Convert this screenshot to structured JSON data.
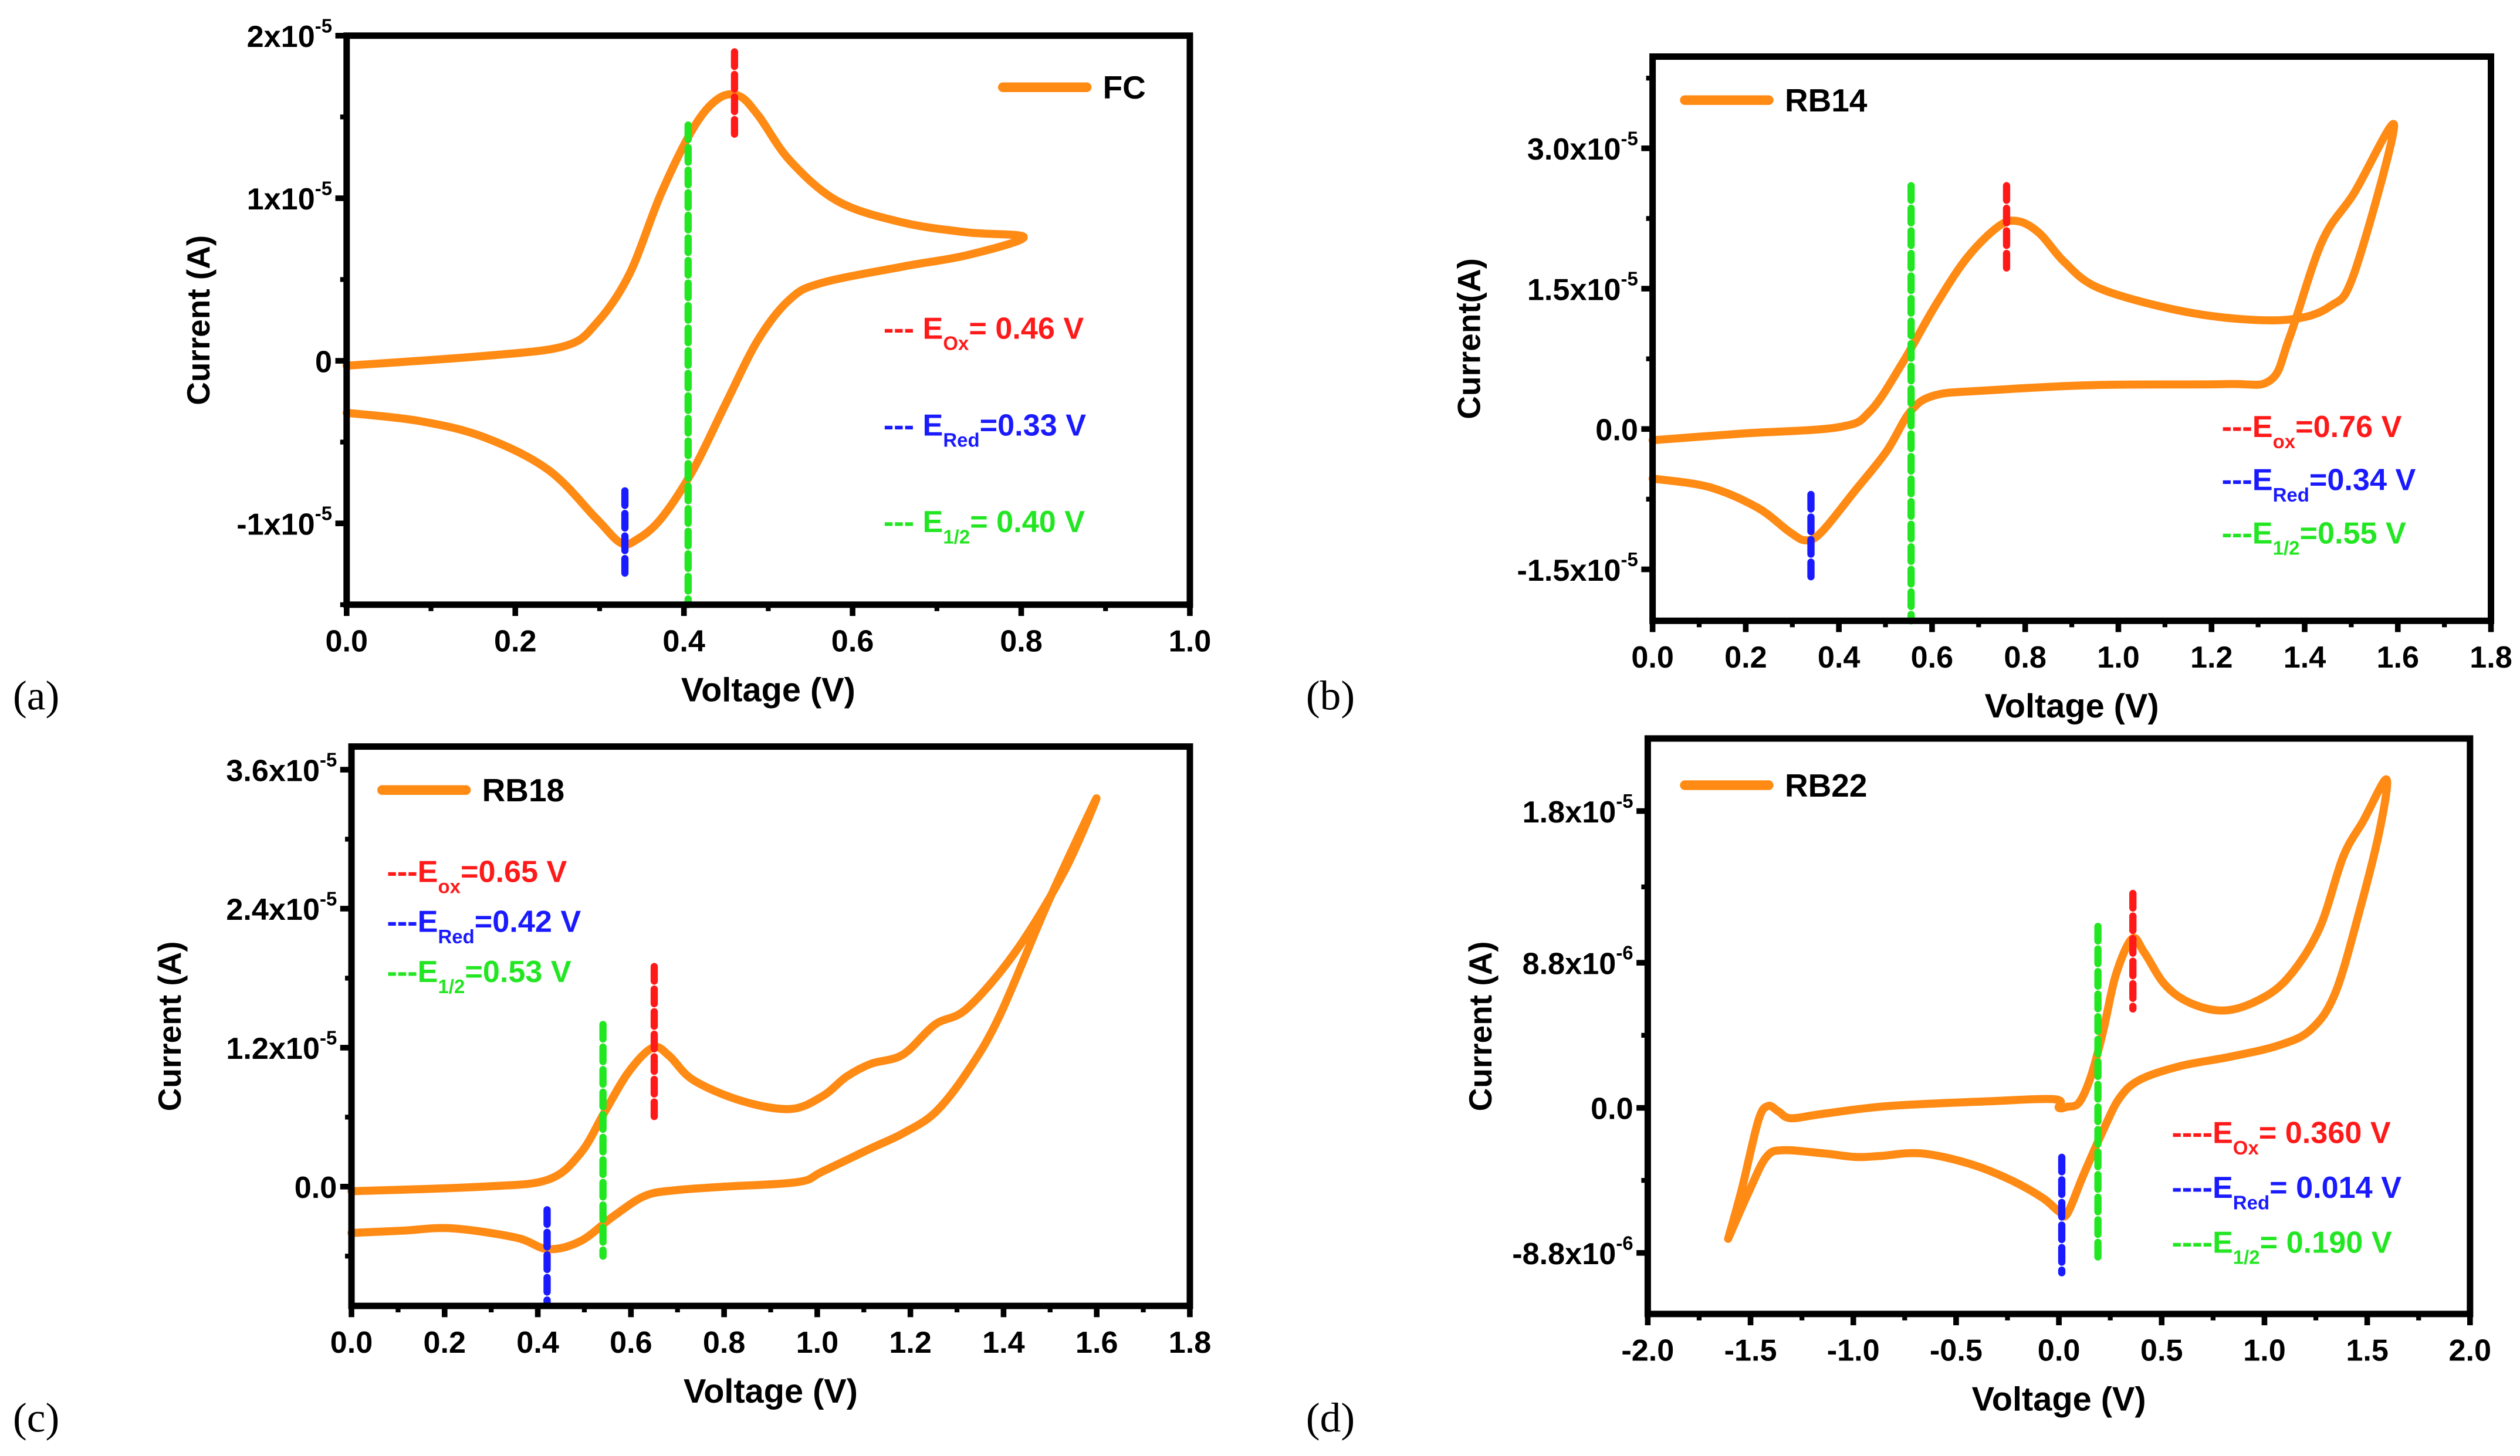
{
  "colors": {
    "curve": "#ff8a14",
    "ox": "#ff1a1a",
    "red": "#1a1aff",
    "half": "#22e622",
    "axis": "#000000"
  },
  "chart_data": [
    {
      "id": "a",
      "type": "line",
      "panel_label": "(a)",
      "legend": "FC",
      "legend_placement": "top-right",
      "xlabel": "Voltage (V)",
      "ylabel": "Current (A)",
      "xlim": [
        0,
        1.0
      ],
      "ylim": [
        -1.5e-05,
        2e-05
      ],
      "xticks": [
        "0.0",
        "0.2",
        "0.4",
        "0.6",
        "0.8",
        "1.0"
      ],
      "xtick_values": [
        0,
        0.2,
        0.4,
        0.6,
        0.8,
        1.0
      ],
      "xminor": 0.1,
      "yticks": [
        {
          "base": "-1x10",
          "exp": "-5",
          "v": -1e-05
        },
        {
          "base": "0",
          "exp": "",
          "v": 0
        },
        {
          "base": "1x10",
          "exp": "-5",
          "v": 1e-05
        },
        {
          "base": "2x10",
          "exp": "-5",
          "v": 2e-05
        }
      ],
      "yminor": [
        -1.5e-05,
        -5e-06,
        5e-06,
        1.5e-05
      ],
      "y_scale": 1e-05,
      "series": [
        {
          "name": "FC",
          "points": [
            [
              0,
              -0.03
            ],
            [
              0.163,
              0.03
            ],
            [
              0.258,
              0.09
            ],
            [
              0.296,
              0.23
            ],
            [
              0.335,
              0.53
            ],
            [
              0.373,
              1.03
            ],
            [
              0.411,
              1.43
            ],
            [
              0.44,
              1.61
            ],
            [
              0.465,
              1.63
            ],
            [
              0.488,
              1.51
            ],
            [
              0.526,
              1.23
            ],
            [
              0.583,
              0.98
            ],
            [
              0.66,
              0.85
            ],
            [
              0.736,
              0.79
            ],
            [
              0.803,
              0.76
            ],
            [
              0.736,
              0.65
            ],
            [
              0.66,
              0.58
            ],
            [
              0.564,
              0.48
            ],
            [
              0.526,
              0.38
            ],
            [
              0.488,
              0.13
            ],
            [
              0.449,
              -0.27
            ],
            [
              0.411,
              -0.67
            ],
            [
              0.373,
              -0.97
            ],
            [
              0.344,
              -1.1
            ],
            [
              0.325,
              -1.12
            ],
            [
              0.296,
              -0.97
            ],
            [
              0.239,
              -0.67
            ],
            [
              0.163,
              -0.47
            ],
            [
              0.086,
              -0.37
            ],
            [
              0,
              -0.32
            ]
          ]
        }
      ],
      "markers": [
        {
          "kind": "ox",
          "x": 0.46,
          "y": [
            1.9,
            1.35
          ]
        },
        {
          "kind": "red",
          "x": 0.33,
          "y": [
            -0.8,
            -1.35
          ]
        },
        {
          "kind": "half",
          "x": 0.405,
          "y": [
            1.45,
            -1.5
          ]
        }
      ],
      "annotations": [
        {
          "kind": "ox",
          "prefix": "--- E",
          "sub": "Ox",
          "rest": "= 0.46 V"
        },
        {
          "kind": "red",
          "prefix": "--- E",
          "sub": "Red",
          "rest": "=0.33 V"
        },
        {
          "kind": "half",
          "prefix": "--- E",
          "sub": "1/2",
          "rest": "= 0.40 V"
        }
      ]
    },
    {
      "id": "b",
      "type": "line",
      "panel_label": "(b)",
      "legend": "RB14",
      "legend_placement": "top-left",
      "xlabel": "Voltage (V)",
      "ylabel": "Current(A)",
      "xlim": [
        0,
        1.8
      ],
      "ylim": [
        -2.05e-05,
        3.98e-05
      ],
      "xticks": [
        "0.0",
        "0.2",
        "0.4",
        "0.6",
        "0.8",
        "1.0",
        "1.2",
        "1.4",
        "1.6",
        "1.8"
      ],
      "xtick_values": [
        0,
        0.2,
        0.4,
        0.6,
        0.8,
        1.0,
        1.2,
        1.4,
        1.6,
        1.8
      ],
      "xminor": 0.1,
      "yticks": [
        {
          "base": "-1.5x10",
          "exp": "-5",
          "v": -1.5e-05
        },
        {
          "base": "0.0",
          "exp": "",
          "v": 0
        },
        {
          "base": "1.5x10",
          "exp": "-5",
          "v": 1.5e-05
        },
        {
          "base": "3.0x10",
          "exp": "-5",
          "v": 3e-05
        }
      ],
      "yminor": [
        -7.5e-06,
        7.5e-06,
        2.25e-05,
        3.75e-05
      ],
      "y_scale": 1e-05,
      "series": [
        {
          "name": "RB14",
          "points": [
            [
              0,
              -0.12
            ],
            [
              0.19,
              -0.05
            ],
            [
              0.4,
              0.02
            ],
            [
              0.467,
              0.19
            ],
            [
              0.537,
              0.71
            ],
            [
              0.606,
              1.31
            ],
            [
              0.675,
              1.83
            ],
            [
              0.744,
              2.17
            ],
            [
              0.786,
              2.22
            ],
            [
              0.831,
              2.09
            ],
            [
              0.883,
              1.79
            ],
            [
              0.952,
              1.52
            ],
            [
              1.09,
              1.31
            ],
            [
              1.229,
              1.19
            ],
            [
              1.367,
              1.17
            ],
            [
              1.454,
              1.31
            ],
            [
              1.506,
              1.66
            ],
            [
              1.592,
              3.24
            ],
            [
              1.506,
              2.52
            ],
            [
              1.437,
              2.0
            ],
            [
              1.367,
              0.97
            ],
            [
              1.326,
              0.52
            ],
            [
              1.229,
              0.48
            ],
            [
              0.952,
              0.47
            ],
            [
              0.71,
              0.41
            ],
            [
              0.606,
              0.36
            ],
            [
              0.554,
              0.19
            ],
            [
              0.502,
              -0.24
            ],
            [
              0.433,
              -0.67
            ],
            [
              0.363,
              -1.1
            ],
            [
              0.329,
              -1.19
            ],
            [
              0.294,
              -1.1
            ],
            [
              0.225,
              -0.84
            ],
            [
              0.121,
              -0.62
            ],
            [
              0,
              -0.53
            ]
          ]
        }
      ],
      "markers": [
        {
          "kind": "ox",
          "x": 0.76,
          "y": [
            2.6,
            1.7
          ]
        },
        {
          "kind": "red",
          "x": 0.34,
          "y": [
            -0.7,
            -1.6
          ]
        },
        {
          "kind": "half",
          "x": 0.555,
          "y": [
            2.6,
            -2.05
          ]
        }
      ],
      "annotations": [
        {
          "kind": "ox",
          "prefix": "---E",
          "sub": "ox",
          "rest": "=0.76 V"
        },
        {
          "kind": "red",
          "prefix": "---E",
          "sub": "Red",
          "rest": "=0.34 V"
        },
        {
          "kind": "half",
          "prefix": "---E",
          "sub": "1/2",
          "rest": "=0.55 V"
        }
      ]
    },
    {
      "id": "c",
      "type": "line",
      "panel_label": "(c)",
      "legend": "RB18",
      "legend_placement": "top-left",
      "xlabel": "Voltage (V)",
      "ylabel": "Current (A)",
      "xlim": [
        0,
        1.8
      ],
      "ylim": [
        -1.03e-05,
        3.8e-05
      ],
      "xticks": [
        "0.0",
        "0.2",
        "0.4",
        "0.6",
        "0.8",
        "1.0",
        "1.2",
        "1.4",
        "1.6",
        "1.8"
      ],
      "xtick_values": [
        0,
        0.2,
        0.4,
        0.6,
        0.8,
        1.0,
        1.2,
        1.4,
        1.6,
        1.8
      ],
      "xminor": 0.1,
      "yticks": [
        {
          "base": "0.0",
          "exp": "",
          "v": 0
        },
        {
          "base": "1.2x10",
          "exp": "-5",
          "v": 1.2e-05
        },
        {
          "base": "2.4x10",
          "exp": "-5",
          "v": 2.4e-05
        },
        {
          "base": "3.6x10",
          "exp": "-5",
          "v": 3.6e-05
        }
      ],
      "yminor": [
        -6e-06,
        6e-06,
        1.8e-05,
        3e-05
      ],
      "y_scale": 1e-05,
      "series": [
        {
          "name": "RB18",
          "points": [
            [
              0,
              -0.04
            ],
            [
              0.284,
              0
            ],
            [
              0.422,
              0.06
            ],
            [
              0.492,
              0.29
            ],
            [
              0.543,
              0.64
            ],
            [
              0.595,
              0.99
            ],
            [
              0.647,
              1.2
            ],
            [
              0.682,
              1.13
            ],
            [
              0.734,
              0.92
            ],
            [
              0.838,
              0.74
            ],
            [
              0.942,
              0.67
            ],
            [
              1.011,
              0.78
            ],
            [
              1.063,
              0.95
            ],
            [
              1.115,
              1.06
            ],
            [
              1.184,
              1.14
            ],
            [
              1.253,
              1.4
            ],
            [
              1.322,
              1.54
            ],
            [
              1.426,
              2.03
            ],
            [
              1.53,
              2.72
            ],
            [
              1.599,
              3.35
            ],
            [
              1.495,
              2.45
            ],
            [
              1.391,
              1.47
            ],
            [
              1.322,
              0.99
            ],
            [
              1.253,
              0.64
            ],
            [
              1.184,
              0.46
            ],
            [
              1.115,
              0.33
            ],
            [
              1.011,
              0.13
            ],
            [
              0.959,
              0.04
            ],
            [
              0.803,
              0
            ],
            [
              0.699,
              -0.03
            ],
            [
              0.63,
              -0.08
            ],
            [
              0.561,
              -0.26
            ],
            [
              0.492,
              -0.47
            ],
            [
              0.422,
              -0.54
            ],
            [
              0.353,
              -0.44
            ],
            [
              0.215,
              -0.36
            ],
            [
              0.111,
              -0.38
            ],
            [
              0,
              -0.4
            ]
          ]
        }
      ],
      "markers": [
        {
          "kind": "ox",
          "x": 0.65,
          "y": [
            1.9,
            0.6
          ]
        },
        {
          "kind": "red",
          "x": 0.42,
          "y": [
            -0.2,
            -1.0
          ]
        },
        {
          "kind": "half",
          "x": 0.54,
          "y": [
            1.4,
            -0.6
          ]
        }
      ],
      "annotations": [
        {
          "kind": "ox",
          "prefix": "---E",
          "sub": "ox",
          "rest": "=0.65 V"
        },
        {
          "kind": "red",
          "prefix": "---E",
          "sub": "Red",
          "rest": "=0.42 V"
        },
        {
          "kind": "half",
          "prefix": "---E",
          "sub": "1/2",
          "rest": "=0.53 V"
        }
      ]
    },
    {
      "id": "d",
      "type": "line",
      "panel_label": "(d)",
      "legend": "RB22",
      "legend_placement": "top-left",
      "xlabel": "Voltage (V)",
      "ylabel": "Current (A)",
      "xlim": [
        -2.0,
        2.0
      ],
      "ylim": [
        -1.25e-05,
        2.24e-05
      ],
      "xticks": [
        "-2.0",
        "-1.5",
        "-1.0",
        "-0.5",
        "0.0",
        "0.5",
        "1.0",
        "1.5",
        "2.0"
      ],
      "xtick_values": [
        -2,
        -1.5,
        -1,
        -0.5,
        0,
        0.5,
        1,
        1.5,
        2
      ],
      "xminor": 0.25,
      "yticks": [
        {
          "base": "-8.8x10",
          "exp": "-6",
          "v": -8.8e-06
        },
        {
          "base": "0.0",
          "exp": "",
          "v": 0
        },
        {
          "base": "8.8x10",
          "exp": "-6",
          "v": 8.8e-06
        },
        {
          "base": "1.8x10",
          "exp": "-5",
          "v": 1.8e-05
        }
      ],
      "yminor": [
        -4.4e-06,
        4.4e-06,
        1.34e-05
      ],
      "y_scale": 1e-06,
      "series": [
        {
          "name": "RB22",
          "points": [
            [
              -1.609,
              -7.94
            ],
            [
              -1.542,
              -4.91
            ],
            [
              -1.462,
              -0.77
            ],
            [
              -1.415,
              0.11
            ],
            [
              -1.364,
              -0.22
            ],
            [
              -1.304,
              -0.63
            ],
            [
              -1.146,
              -0.36
            ],
            [
              -0.83,
              0.11
            ],
            [
              -0.356,
              0.39
            ],
            [
              -0.02,
              0.52
            ],
            [
              0.0,
              0.0
            ],
            [
              0.04,
              0.06
            ],
            [
              0.099,
              0.33
            ],
            [
              0.158,
              1.99
            ],
            [
              0.217,
              4.74
            ],
            [
              0.277,
              8.06
            ],
            [
              0.356,
              10.26
            ],
            [
              0.415,
              9.43
            ],
            [
              0.514,
              7.5
            ],
            [
              0.632,
              6.4
            ],
            [
              0.791,
              5.9
            ],
            [
              0.949,
              6.4
            ],
            [
              1.107,
              7.78
            ],
            [
              1.265,
              10.81
            ],
            [
              1.383,
              15.23
            ],
            [
              1.482,
              17.43
            ],
            [
              1.593,
              19.92
            ],
            [
              1.561,
              16.88
            ],
            [
              1.462,
              11.92
            ],
            [
              1.344,
              6.95
            ],
            [
              1.225,
              4.74
            ],
            [
              1.067,
              3.78
            ],
            [
              0.83,
              3.09
            ],
            [
              0.593,
              2.54
            ],
            [
              0.395,
              1.71
            ],
            [
              0.296,
              0.61
            ],
            [
              0.217,
              -1.32
            ],
            [
              0.119,
              -4.08
            ],
            [
              0.04,
              -6.43
            ],
            [
              0,
              -6.29
            ],
            [
              -0.079,
              -5.46
            ],
            [
              -0.237,
              -4.36
            ],
            [
              -0.435,
              -3.39
            ],
            [
              -0.672,
              -2.76
            ],
            [
              -0.87,
              -2.92
            ],
            [
              -0.988,
              -2.98
            ],
            [
              -1.146,
              -2.76
            ],
            [
              -1.344,
              -2.57
            ],
            [
              -1.423,
              -2.98
            ],
            [
              -1.502,
              -4.91
            ],
            [
              -1.609,
              -7.94
            ]
          ]
        }
      ],
      "markers": [
        {
          "kind": "ox",
          "x": 0.36,
          "y": [
            13,
            6
          ]
        },
        {
          "kind": "red",
          "x": 0.014,
          "y": [
            -3,
            -10
          ]
        },
        {
          "kind": "half",
          "x": 0.19,
          "y": [
            11,
            -9.5
          ]
        }
      ],
      "annotations": [
        {
          "kind": "ox",
          "prefix": "----E",
          "sub": "Ox",
          "rest": "= 0.360 V"
        },
        {
          "kind": "red",
          "prefix": "----E",
          "sub": "Red",
          "rest": "= 0.014 V"
        },
        {
          "kind": "half",
          "prefix": "----E",
          "sub": "1/2",
          "rest": "= 0.190 V"
        }
      ]
    }
  ]
}
